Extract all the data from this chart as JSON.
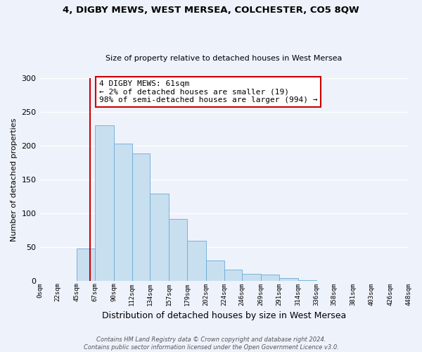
{
  "title": "4, DIGBY MEWS, WEST MERSEA, COLCHESTER, CO5 8QW",
  "subtitle": "Size of property relative to detached houses in West Mersea",
  "xlabel": "Distribution of detached houses by size in West Mersea",
  "ylabel": "Number of detached properties",
  "bar_edges": [
    0,
    22,
    45,
    67,
    90,
    112,
    134,
    157,
    179,
    202,
    224,
    246,
    269,
    291,
    314,
    336,
    358,
    381,
    403,
    426,
    448
  ],
  "bar_heights": [
    0,
    0,
    48,
    230,
    203,
    188,
    129,
    91,
    59,
    30,
    16,
    10,
    9,
    4,
    1,
    0,
    0,
    0,
    0,
    0
  ],
  "bar_color": "#c8dff0",
  "bar_edgecolor": "#6aaad4",
  "property_value": 61,
  "vline_color": "#cc0000",
  "annotation_text": "4 DIGBY MEWS: 61sqm\n← 2% of detached houses are smaller (19)\n98% of semi-detached houses are larger (994) →",
  "annotation_box_color": "#ffffff",
  "annotation_box_edgecolor": "#cc0000",
  "ylim": [
    0,
    300
  ],
  "yticks": [
    0,
    50,
    100,
    150,
    200,
    250,
    300
  ],
  "tick_labels": [
    "0sqm",
    "22sqm",
    "45sqm",
    "67sqm",
    "90sqm",
    "112sqm",
    "134sqm",
    "157sqm",
    "179sqm",
    "202sqm",
    "224sqm",
    "246sqm",
    "269sqm",
    "291sqm",
    "314sqm",
    "336sqm",
    "358sqm",
    "381sqm",
    "403sqm",
    "426sqm",
    "448sqm"
  ],
  "footnote": "Contains HM Land Registry data © Crown copyright and database right 2024.\nContains public sector information licensed under the Open Government Licence v3.0.",
  "background_color": "#eef2fb",
  "plot_background_color": "#eef2fb",
  "grid_color": "#ffffff"
}
